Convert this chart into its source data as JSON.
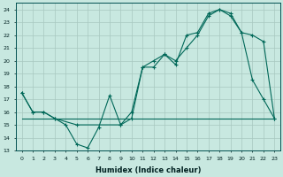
{
  "xlabel": "Humidex (Indice chaleur)",
  "bg_color": "#c8e8e0",
  "grid_color": "#a8c8c0",
  "line_color": "#006858",
  "xlim": [
    -0.5,
    23.5
  ],
  "ylim": [
    13,
    24.5
  ],
  "yticks": [
    13,
    14,
    15,
    16,
    17,
    18,
    19,
    20,
    21,
    22,
    23,
    24
  ],
  "xticks": [
    0,
    1,
    2,
    3,
    4,
    5,
    6,
    7,
    8,
    9,
    10,
    11,
    12,
    13,
    14,
    15,
    16,
    17,
    18,
    19,
    20,
    21,
    22,
    23
  ],
  "line1_x": [
    0,
    1,
    2,
    3,
    4,
    5,
    6,
    7,
    8,
    9,
    10,
    11,
    12,
    13,
    14,
    15,
    16,
    17,
    18,
    19,
    20,
    21,
    22,
    23
  ],
  "line1_y": [
    17.5,
    16,
    16,
    15.5,
    15,
    13.5,
    13.2,
    14.8,
    17.3,
    15,
    15.5,
    19.5,
    19.5,
    20.5,
    19.7,
    22.0,
    22.2,
    23.7,
    24,
    23.7,
    22.2,
    18.5,
    17,
    15.5
  ],
  "line2_x": [
    0,
    2,
    16,
    23
  ],
  "line2_y": [
    15.5,
    15.5,
    15.5,
    15.5
  ],
  "line3_x": [
    0,
    1,
    2,
    3,
    5,
    9,
    10,
    11,
    12,
    13,
    14,
    15,
    16,
    17,
    18,
    19,
    20,
    21,
    22,
    23
  ],
  "line3_y": [
    17.5,
    16,
    16,
    15.5,
    15,
    15,
    16,
    19.5,
    20,
    20.5,
    20,
    21,
    22,
    23.5,
    24,
    23.5,
    22.2,
    22,
    21.5,
    15.5
  ]
}
